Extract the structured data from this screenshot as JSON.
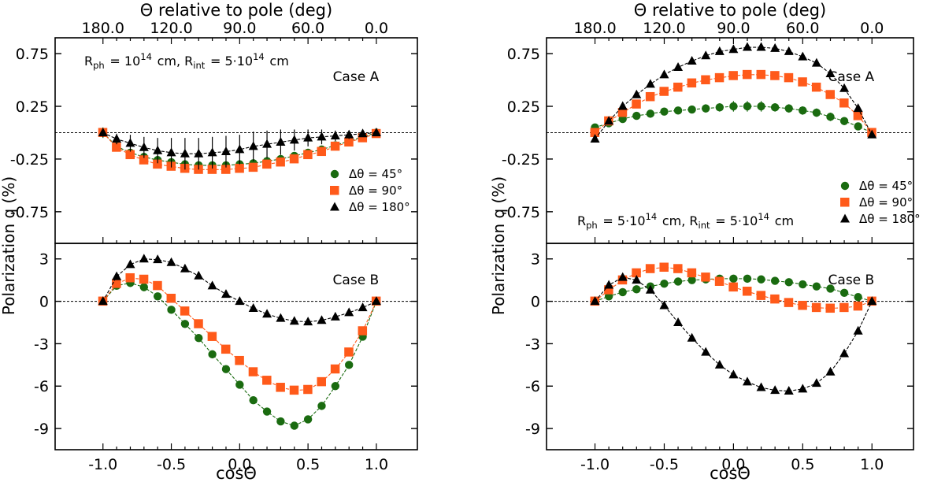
{
  "ylabel": "Polarization q (%)",
  "series_style": {
    "g45": {
      "color": "#1a6b10",
      "marker": "circle",
      "label": "Δθ = 45°"
    },
    "g90": {
      "color": "#ff5a1a",
      "marker": "square",
      "label": "Δθ = 90°"
    },
    "g180": {
      "color": "#000000",
      "marker": "triangle",
      "label": "Δθ = 180°"
    }
  },
  "chart_data": [
    {
      "type": "scatter",
      "panel": "left-top",
      "case_label": "Case A",
      "annotation": "R_ph = 10^14 cm, R_int = 5·10^14 cm",
      "top_axis_label": "Θ relative to pole (deg)",
      "top_ticks": [
        "180.0",
        "120.0",
        "90.0",
        "60.0",
        "0.0"
      ],
      "yticks": [
        "0.75",
        "0.25",
        "-0.25",
        "-0.75"
      ],
      "ylim": [
        -1.05,
        0.9
      ],
      "xlim": [
        -1.35,
        1.3
      ],
      "legend": [
        "Δθ = 45°",
        "Δθ = 90°",
        "Δθ = 180°"
      ],
      "x": [
        -1.0,
        -0.9,
        -0.8,
        -0.7,
        -0.6,
        -0.5,
        -0.4,
        -0.3,
        -0.2,
        -0.1,
        0.0,
        0.1,
        0.2,
        0.3,
        0.4,
        0.5,
        0.6,
        0.7,
        0.8,
        0.9,
        1.0
      ],
      "series": [
        {
          "key": "g45",
          "name": "Δθ = 45°",
          "values": [
            0.0,
            -0.13,
            -0.19,
            -0.23,
            -0.26,
            -0.28,
            -0.3,
            -0.31,
            -0.31,
            -0.31,
            -0.3,
            -0.29,
            -0.27,
            -0.25,
            -0.22,
            -0.19,
            -0.16,
            -0.12,
            -0.08,
            -0.04,
            0.0
          ],
          "err": [
            0.05,
            0.03,
            0.03,
            0.03,
            0.03,
            0.03,
            0.03,
            0.03,
            0.03,
            0.03,
            0.03,
            0.03,
            0.03,
            0.03,
            0.03,
            0.03,
            0.03,
            0.03,
            0.03,
            0.03,
            0.03
          ]
        },
        {
          "key": "g90",
          "name": "Δθ = 90°",
          "values": [
            0.0,
            -0.14,
            -0.21,
            -0.26,
            -0.3,
            -0.32,
            -0.34,
            -0.35,
            -0.35,
            -0.35,
            -0.34,
            -0.33,
            -0.3,
            -0.28,
            -0.25,
            -0.21,
            -0.18,
            -0.13,
            -0.09,
            -0.05,
            -0.01
          ],
          "err": [
            0.03,
            0.03,
            0.03,
            0.03,
            0.03,
            0.03,
            0.03,
            0.03,
            0.03,
            0.03,
            0.03,
            0.03,
            0.03,
            0.03,
            0.03,
            0.03,
            0.03,
            0.03,
            0.03,
            0.03,
            0.03
          ]
        },
        {
          "key": "g180",
          "name": "Δθ = 180°",
          "values": [
            0.0,
            -0.06,
            -0.1,
            -0.14,
            -0.17,
            -0.19,
            -0.2,
            -0.2,
            -0.19,
            -0.18,
            -0.16,
            -0.13,
            -0.11,
            -0.09,
            -0.07,
            -0.05,
            -0.04,
            -0.03,
            -0.02,
            -0.01,
            0.0
          ],
          "err": [
            0.04,
            0.05,
            0.08,
            0.1,
            0.12,
            0.14,
            0.15,
            0.15,
            0.15,
            0.15,
            0.14,
            0.14,
            0.13,
            0.12,
            0.1,
            0.08,
            0.07,
            0.05,
            0.04,
            0.03,
            0.02
          ]
        }
      ]
    },
    {
      "type": "scatter",
      "panel": "left-bottom",
      "case_label": "Case B",
      "xlabel": "cosΘ",
      "xticks": [
        "-1.0",
        "-0.5",
        "0.0",
        "0.5",
        "1.0"
      ],
      "yticks": [
        "3",
        "0",
        "-3",
        "-6",
        "-9"
      ],
      "ylim": [
        -10.5,
        4.1
      ],
      "xlim": [
        -1.35,
        1.3
      ],
      "x": [
        -1.0,
        -0.9,
        -0.8,
        -0.7,
        -0.6,
        -0.5,
        -0.4,
        -0.3,
        -0.2,
        -0.1,
        0.0,
        0.1,
        0.2,
        0.3,
        0.4,
        0.5,
        0.6,
        0.7,
        0.8,
        0.9,
        1.0
      ],
      "series": [
        {
          "key": "g45",
          "name": "Δθ = 45°",
          "values": [
            0.0,
            1.1,
            1.3,
            1.0,
            0.35,
            -0.6,
            -1.6,
            -2.6,
            -3.75,
            -4.8,
            -5.9,
            -7.0,
            -7.8,
            -8.5,
            -8.8,
            -8.35,
            -7.4,
            -6.0,
            -4.5,
            -2.5,
            0.0
          ]
        },
        {
          "key": "g90",
          "name": "Δθ = 90°",
          "values": [
            0.0,
            1.25,
            1.65,
            1.55,
            1.1,
            0.2,
            -0.7,
            -1.6,
            -2.5,
            -3.4,
            -4.2,
            -5.0,
            -5.6,
            -6.1,
            -6.3,
            -6.25,
            -5.7,
            -4.8,
            -3.6,
            -2.1,
            0.0
          ]
        },
        {
          "key": "g180",
          "name": "Δθ = 180°",
          "values": [
            0.0,
            1.75,
            2.6,
            3.0,
            2.95,
            2.75,
            2.3,
            1.8,
            1.1,
            0.5,
            0.0,
            -0.5,
            -0.9,
            -1.2,
            -1.4,
            -1.45,
            -1.35,
            -1.1,
            -0.8,
            -0.45,
            0.0
          ]
        }
      ]
    },
    {
      "type": "scatter",
      "panel": "right-top",
      "case_label": "Case A",
      "annotation": "R_ph = 5·10^14 cm, R_int = 5·10^14 cm",
      "top_axis_label": "Θ relative to pole (deg)",
      "top_ticks": [
        "180.0",
        "120.0",
        "90.0",
        "60.0",
        "0.0"
      ],
      "yticks": [
        "0.75",
        "0.25",
        "-0.25",
        "-0.75"
      ],
      "ylim": [
        -1.05,
        0.9
      ],
      "xlim": [
        -1.35,
        1.3
      ],
      "legend": [
        "Δθ = 45°",
        "Δθ = 90°",
        "Δθ = 180°"
      ],
      "x": [
        -1.0,
        -0.9,
        -0.8,
        -0.7,
        -0.6,
        -0.5,
        -0.4,
        -0.3,
        -0.2,
        -0.1,
        0.0,
        0.1,
        0.2,
        0.3,
        0.4,
        0.5,
        0.6,
        0.7,
        0.8,
        0.9,
        1.0
      ],
      "series": [
        {
          "key": "g45",
          "name": "Δθ = 45°",
          "values": [
            0.05,
            0.09,
            0.13,
            0.16,
            0.18,
            0.2,
            0.21,
            0.22,
            0.23,
            0.24,
            0.25,
            0.25,
            0.25,
            0.24,
            0.23,
            0.21,
            0.19,
            0.15,
            0.11,
            0.06,
            0.0
          ],
          "err": [
            0.03,
            0.03,
            0.03,
            0.03,
            0.03,
            0.03,
            0.03,
            0.03,
            0.04,
            0.04,
            0.05,
            0.05,
            0.05,
            0.04,
            0.04,
            0.04,
            0.04,
            0.04,
            0.03,
            0.03,
            0.04
          ]
        },
        {
          "key": "g90",
          "name": "Δθ = 90°",
          "values": [
            0.0,
            0.11,
            0.19,
            0.27,
            0.34,
            0.39,
            0.43,
            0.47,
            0.5,
            0.52,
            0.54,
            0.55,
            0.55,
            0.54,
            0.52,
            0.48,
            0.43,
            0.36,
            0.28,
            0.16,
            0.0
          ],
          "err": [
            0.03,
            0.03,
            0.03,
            0.03,
            0.03,
            0.03,
            0.03,
            0.03,
            0.03,
            0.03,
            0.03,
            0.03,
            0.03,
            0.03,
            0.03,
            0.03,
            0.03,
            0.03,
            0.03,
            0.03,
            0.03
          ]
        },
        {
          "key": "g180",
          "name": "Δθ = 180°",
          "values": [
            -0.06,
            0.11,
            0.25,
            0.36,
            0.46,
            0.55,
            0.62,
            0.68,
            0.73,
            0.77,
            0.79,
            0.81,
            0.81,
            0.8,
            0.77,
            0.72,
            0.66,
            0.56,
            0.42,
            0.23,
            -0.02
          ],
          "err": [
            0.02,
            0.02,
            0.02,
            0.02,
            0.02,
            0.02,
            0.02,
            0.02,
            0.02,
            0.02,
            0.02,
            0.02,
            0.02,
            0.02,
            0.02,
            0.02,
            0.02,
            0.02,
            0.02,
            0.02,
            0.02
          ]
        }
      ]
    },
    {
      "type": "scatter",
      "panel": "right-bottom",
      "case_label": "Case B",
      "xlabel": "cosΘ",
      "xticks": [
        "-1.0",
        "-0.5",
        "0.0",
        "0.5",
        "1.0"
      ],
      "yticks": [
        "3",
        "0",
        "-3",
        "-6",
        "-9"
      ],
      "ylim": [
        -10.5,
        4.1
      ],
      "xlim": [
        -1.35,
        1.3
      ],
      "x": [
        -1.0,
        -0.9,
        -0.8,
        -0.7,
        -0.6,
        -0.5,
        -0.4,
        -0.3,
        -0.2,
        -0.1,
        0.0,
        0.1,
        0.2,
        0.3,
        0.4,
        0.5,
        0.6,
        0.7,
        0.8,
        0.9,
        1.0
      ],
      "series": [
        {
          "key": "g45",
          "name": "Δθ = 45°",
          "values": [
            0.0,
            0.35,
            0.65,
            0.85,
            1.05,
            1.25,
            1.4,
            1.5,
            1.55,
            1.6,
            1.6,
            1.6,
            1.55,
            1.45,
            1.35,
            1.2,
            1.05,
            0.9,
            0.6,
            0.3,
            0.0
          ]
        },
        {
          "key": "g90",
          "name": "Δθ = 90°",
          "values": [
            0.0,
            0.8,
            1.5,
            2.0,
            2.3,
            2.4,
            2.3,
            2.0,
            1.7,
            1.4,
            1.0,
            0.7,
            0.4,
            0.15,
            -0.1,
            -0.3,
            -0.45,
            -0.5,
            -0.45,
            -0.35,
            0.0
          ]
        },
        {
          "key": "g180",
          "name": "Δθ = 180°",
          "values": [
            0.0,
            1.15,
            1.7,
            1.5,
            0.8,
            -0.3,
            -1.5,
            -2.6,
            -3.6,
            -4.5,
            -5.2,
            -5.7,
            -6.1,
            -6.3,
            -6.35,
            -6.2,
            -5.8,
            -5.0,
            -3.7,
            -2.1,
            0.0
          ]
        }
      ]
    }
  ]
}
